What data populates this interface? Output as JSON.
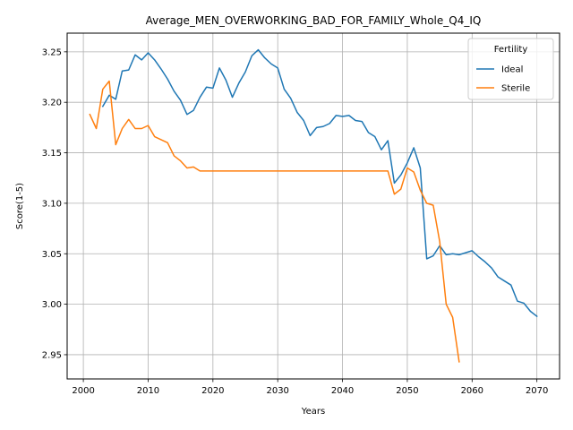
{
  "chart_data": {
    "type": "line",
    "title": "Average_MEN_OVERWORKING_BAD_FOR_FAMILY_Whole_Q4_IQ",
    "xlabel": "Years",
    "ylabel": "Score(1-5)",
    "xlim": [
      1997.5,
      2073.5
    ],
    "ylim": [
      2.926,
      3.2685
    ],
    "xticks": [
      2000,
      2010,
      2020,
      2030,
      2040,
      2050,
      2060,
      2070
    ],
    "yticks": [
      2.95,
      3.0,
      3.05,
      3.1,
      3.15,
      3.2,
      3.25
    ],
    "xtick_labels": [
      "2000",
      "2010",
      "2020",
      "2030",
      "2040",
      "2050",
      "2060",
      "2070"
    ],
    "ytick_labels": [
      "2.95",
      "3.00",
      "3.05",
      "3.10",
      "3.15",
      "3.20",
      "3.25"
    ],
    "grid": true,
    "legend": {
      "title": "Fertility",
      "position": "top-right"
    },
    "series": [
      {
        "name": "Ideal",
        "color": "#1f77b4",
        "x": [
          2003,
          2004,
          2005,
          2006,
          2007,
          2008,
          2009,
          2010,
          2011,
          2012,
          2013,
          2014,
          2015,
          2016,
          2017,
          2018,
          2019,
          2020,
          2021,
          2022,
          2023,
          2024,
          2025,
          2026,
          2027,
          2028,
          2029,
          2030,
          2031,
          2032,
          2033,
          2034,
          2035,
          2036,
          2037,
          2038,
          2039,
          2040,
          2041,
          2042,
          2043,
          2044,
          2045,
          2046,
          2047,
          2048,
          2049,
          2050,
          2051,
          2052,
          2053,
          2054,
          2055,
          2056,
          2057,
          2058,
          2059,
          2060,
          2061,
          2062,
          2063,
          2064,
          2065,
          2066,
          2067,
          2068,
          2069,
          2070
        ],
        "values": [
          3.196,
          3.207,
          3.203,
          3.231,
          3.232,
          3.247,
          3.242,
          3.249,
          3.242,
          3.233,
          3.223,
          3.211,
          3.202,
          3.188,
          3.192,
          3.205,
          3.215,
          3.214,
          3.234,
          3.222,
          3.205,
          3.219,
          3.23,
          3.246,
          3.252,
          3.244,
          3.238,
          3.234,
          3.213,
          3.204,
          3.19,
          3.182,
          3.167,
          3.175,
          3.176,
          3.179,
          3.187,
          3.186,
          3.187,
          3.182,
          3.181,
          3.17,
          3.166,
          3.153,
          3.162,
          3.12,
          3.128,
          3.14,
          3.155,
          3.135,
          3.045,
          3.048,
          3.058,
          3.049,
          3.05,
          3.049,
          3.051,
          3.053,
          3.047,
          3.042,
          3.036,
          3.027,
          3.023,
          3.019,
          3.003,
          3.001,
          2.993,
          2.988
        ]
      },
      {
        "name": "Sterile",
        "color": "#ff7f0e",
        "x": [
          2001,
          2002,
          2003,
          2004,
          2005,
          2006,
          2007,
          2008,
          2009,
          2010,
          2011,
          2012,
          2013,
          2014,
          2015,
          2016,
          2017,
          2018,
          2019,
          2020,
          2021,
          2022,
          2023,
          2024,
          2025,
          2026,
          2027,
          2028,
          2029,
          2030,
          2031,
          2032,
          2033,
          2034,
          2035,
          2036,
          2037,
          2038,
          2039,
          2040,
          2041,
          2042,
          2043,
          2044,
          2045,
          2046,
          2047,
          2048,
          2049,
          2050,
          2051,
          2052,
          2053,
          2054,
          2055,
          2056,
          2057,
          2058
        ],
        "values": [
          3.188,
          3.174,
          3.213,
          3.221,
          3.158,
          3.174,
          3.183,
          3.174,
          3.174,
          3.177,
          3.166,
          3.163,
          3.16,
          3.147,
          3.142,
          3.135,
          3.136,
          3.132,
          3.132,
          3.132,
          3.132,
          3.132,
          3.132,
          3.132,
          3.132,
          3.132,
          3.132,
          3.132,
          3.132,
          3.132,
          3.132,
          3.132,
          3.132,
          3.132,
          3.132,
          3.132,
          3.132,
          3.132,
          3.132,
          3.132,
          3.132,
          3.132,
          3.132,
          3.132,
          3.132,
          3.132,
          3.132,
          3.109,
          3.114,
          3.135,
          3.131,
          3.113,
          3.1,
          3.098,
          3.062,
          3.0,
          2.987,
          2.943
        ]
      }
    ]
  }
}
